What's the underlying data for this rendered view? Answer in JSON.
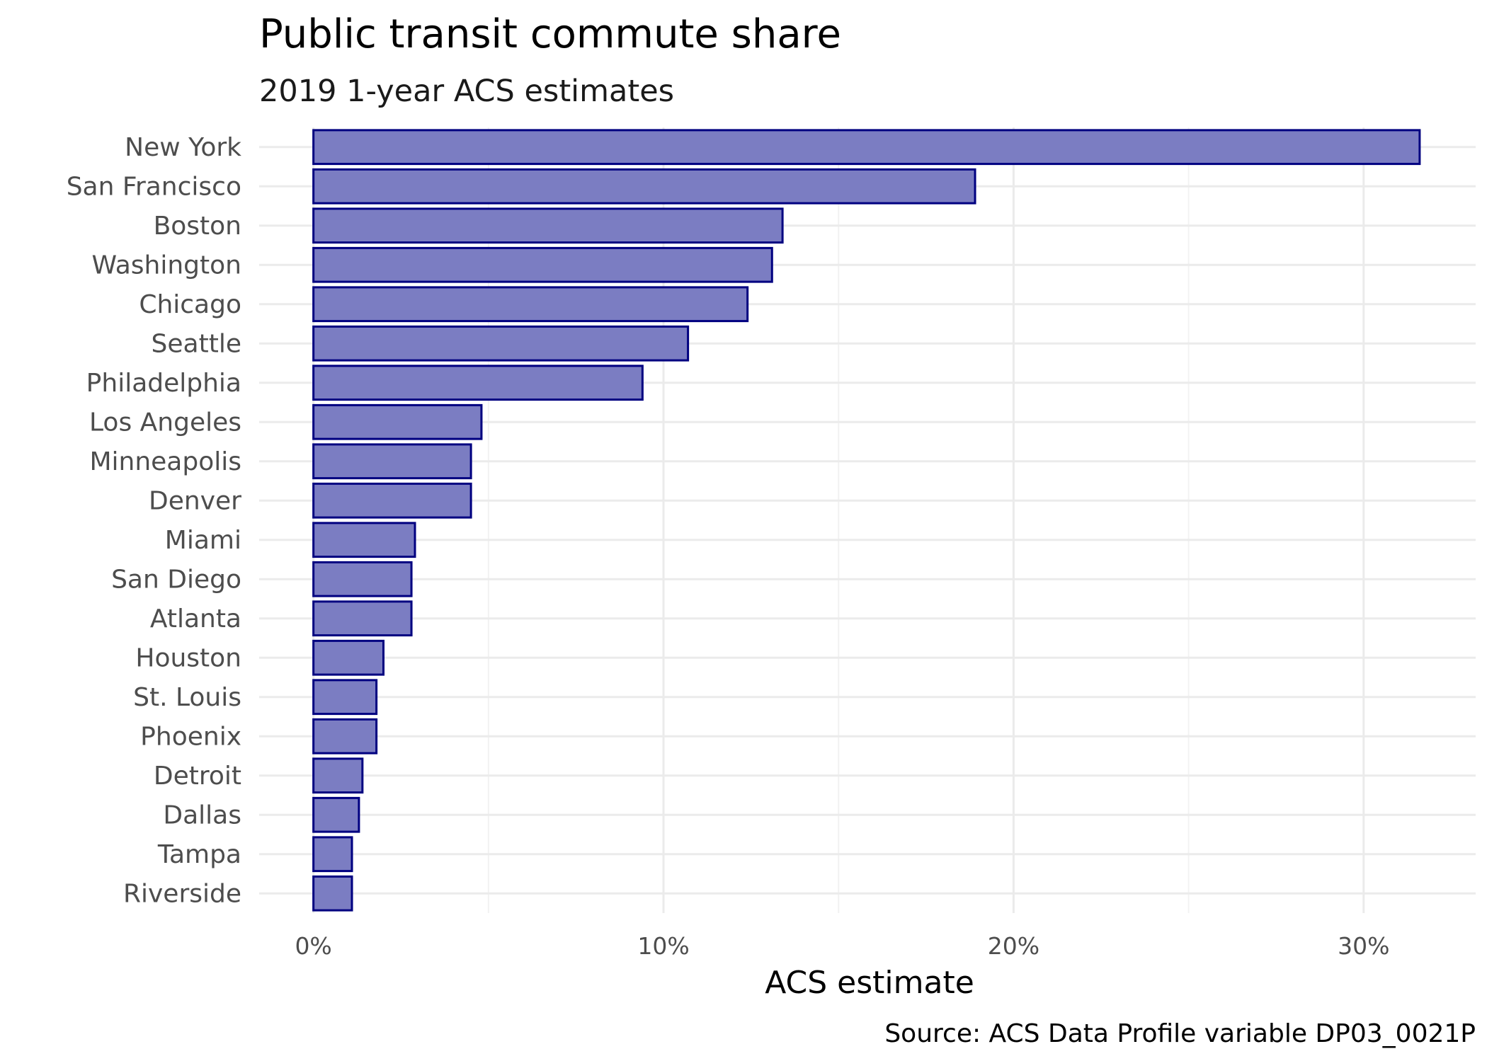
{
  "chart_data": {
    "type": "bar",
    "orientation": "horizontal",
    "title": "Public transit commute share",
    "subtitle": "2019 1-year ACS estimates",
    "xlabel": "ACS estimate",
    "ylabel": "",
    "caption": "Source: ACS Data Profile variable DP03_0021P",
    "categories": [
      "New York",
      "San Francisco",
      "Boston",
      "Washington",
      "Chicago",
      "Seattle",
      "Philadelphia",
      "Los Angeles",
      "Minneapolis",
      "Denver",
      "Miami",
      "San Diego",
      "Atlanta",
      "Houston",
      "St. Louis",
      "Phoenix",
      "Detroit",
      "Dallas",
      "Tampa",
      "Riverside"
    ],
    "values": [
      31.6,
      18.9,
      13.4,
      13.1,
      12.4,
      10.7,
      9.4,
      4.8,
      4.5,
      4.5,
      2.9,
      2.8,
      2.8,
      2.0,
      1.8,
      1.8,
      1.4,
      1.3,
      1.1,
      1.1
    ],
    "value_unit": "%",
    "xlim": [
      -1.55,
      33.2
    ],
    "xticks": [
      0,
      10,
      20,
      30
    ],
    "xtick_labels": [
      "0%",
      "10%",
      "20%",
      "30%"
    ],
    "x_minor_ticks": [
      5,
      15,
      25
    ],
    "grid": true,
    "legend": "none",
    "colors": {
      "bar_fill": "#7b7dc2",
      "bar_stroke": "#000080",
      "grid_major": "#ebebeb",
      "grid_minor": "#f2f2f2"
    }
  }
}
